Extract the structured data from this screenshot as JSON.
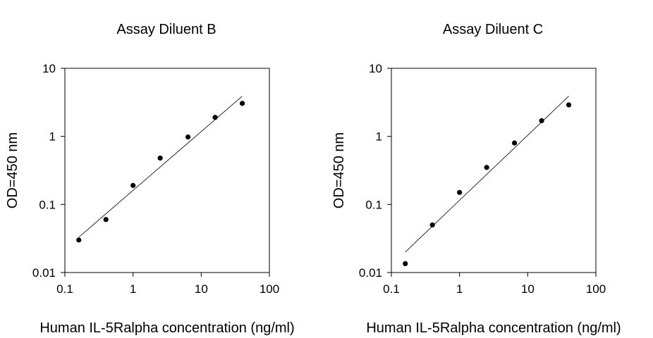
{
  "chart_data": [
    {
      "type": "scatter",
      "title": "Assay Diluent B",
      "xlabel": "Human IL-5Ralpha concentration (ng/ml)",
      "ylabel": "OD=450 nm",
      "x_scale": "log",
      "y_scale": "log",
      "xlim": [
        0.1,
        100
      ],
      "ylim": [
        0.01,
        10
      ],
      "x_ticks": [
        "0.1",
        "1",
        "10",
        "100"
      ],
      "y_ticks": [
        "0.01",
        "0.1",
        "1",
        "10"
      ],
      "grid": false,
      "points": {
        "x": [
          0.16,
          0.4,
          1.0,
          2.5,
          6.4,
          16.0,
          40.0
        ],
        "y": [
          0.03,
          0.06,
          0.19,
          0.48,
          0.98,
          1.9,
          3.05
        ]
      },
      "fit_line": {
        "x": [
          0.16,
          40.0
        ],
        "y": [
          0.033,
          3.9
        ]
      }
    },
    {
      "type": "scatter",
      "title": "Assay Diluent C",
      "xlabel": "Human IL-5Ralpha concentration (ng/ml)",
      "ylabel": "OD=450 nm",
      "x_scale": "log",
      "y_scale": "log",
      "xlim": [
        0.1,
        100
      ],
      "ylim": [
        0.01,
        10
      ],
      "x_ticks": [
        "0.1",
        "1",
        "10",
        "100"
      ],
      "y_ticks": [
        "0.01",
        "0.1",
        "1",
        "10"
      ],
      "grid": false,
      "points": {
        "x": [
          0.16,
          0.4,
          1.0,
          2.5,
          6.4,
          16.0,
          40.0
        ],
        "y": [
          0.0135,
          0.05,
          0.15,
          0.35,
          0.8,
          1.7,
          2.9
        ]
      },
      "fit_line": {
        "x": [
          0.16,
          40.0
        ],
        "y": [
          0.02,
          3.9
        ]
      }
    }
  ]
}
